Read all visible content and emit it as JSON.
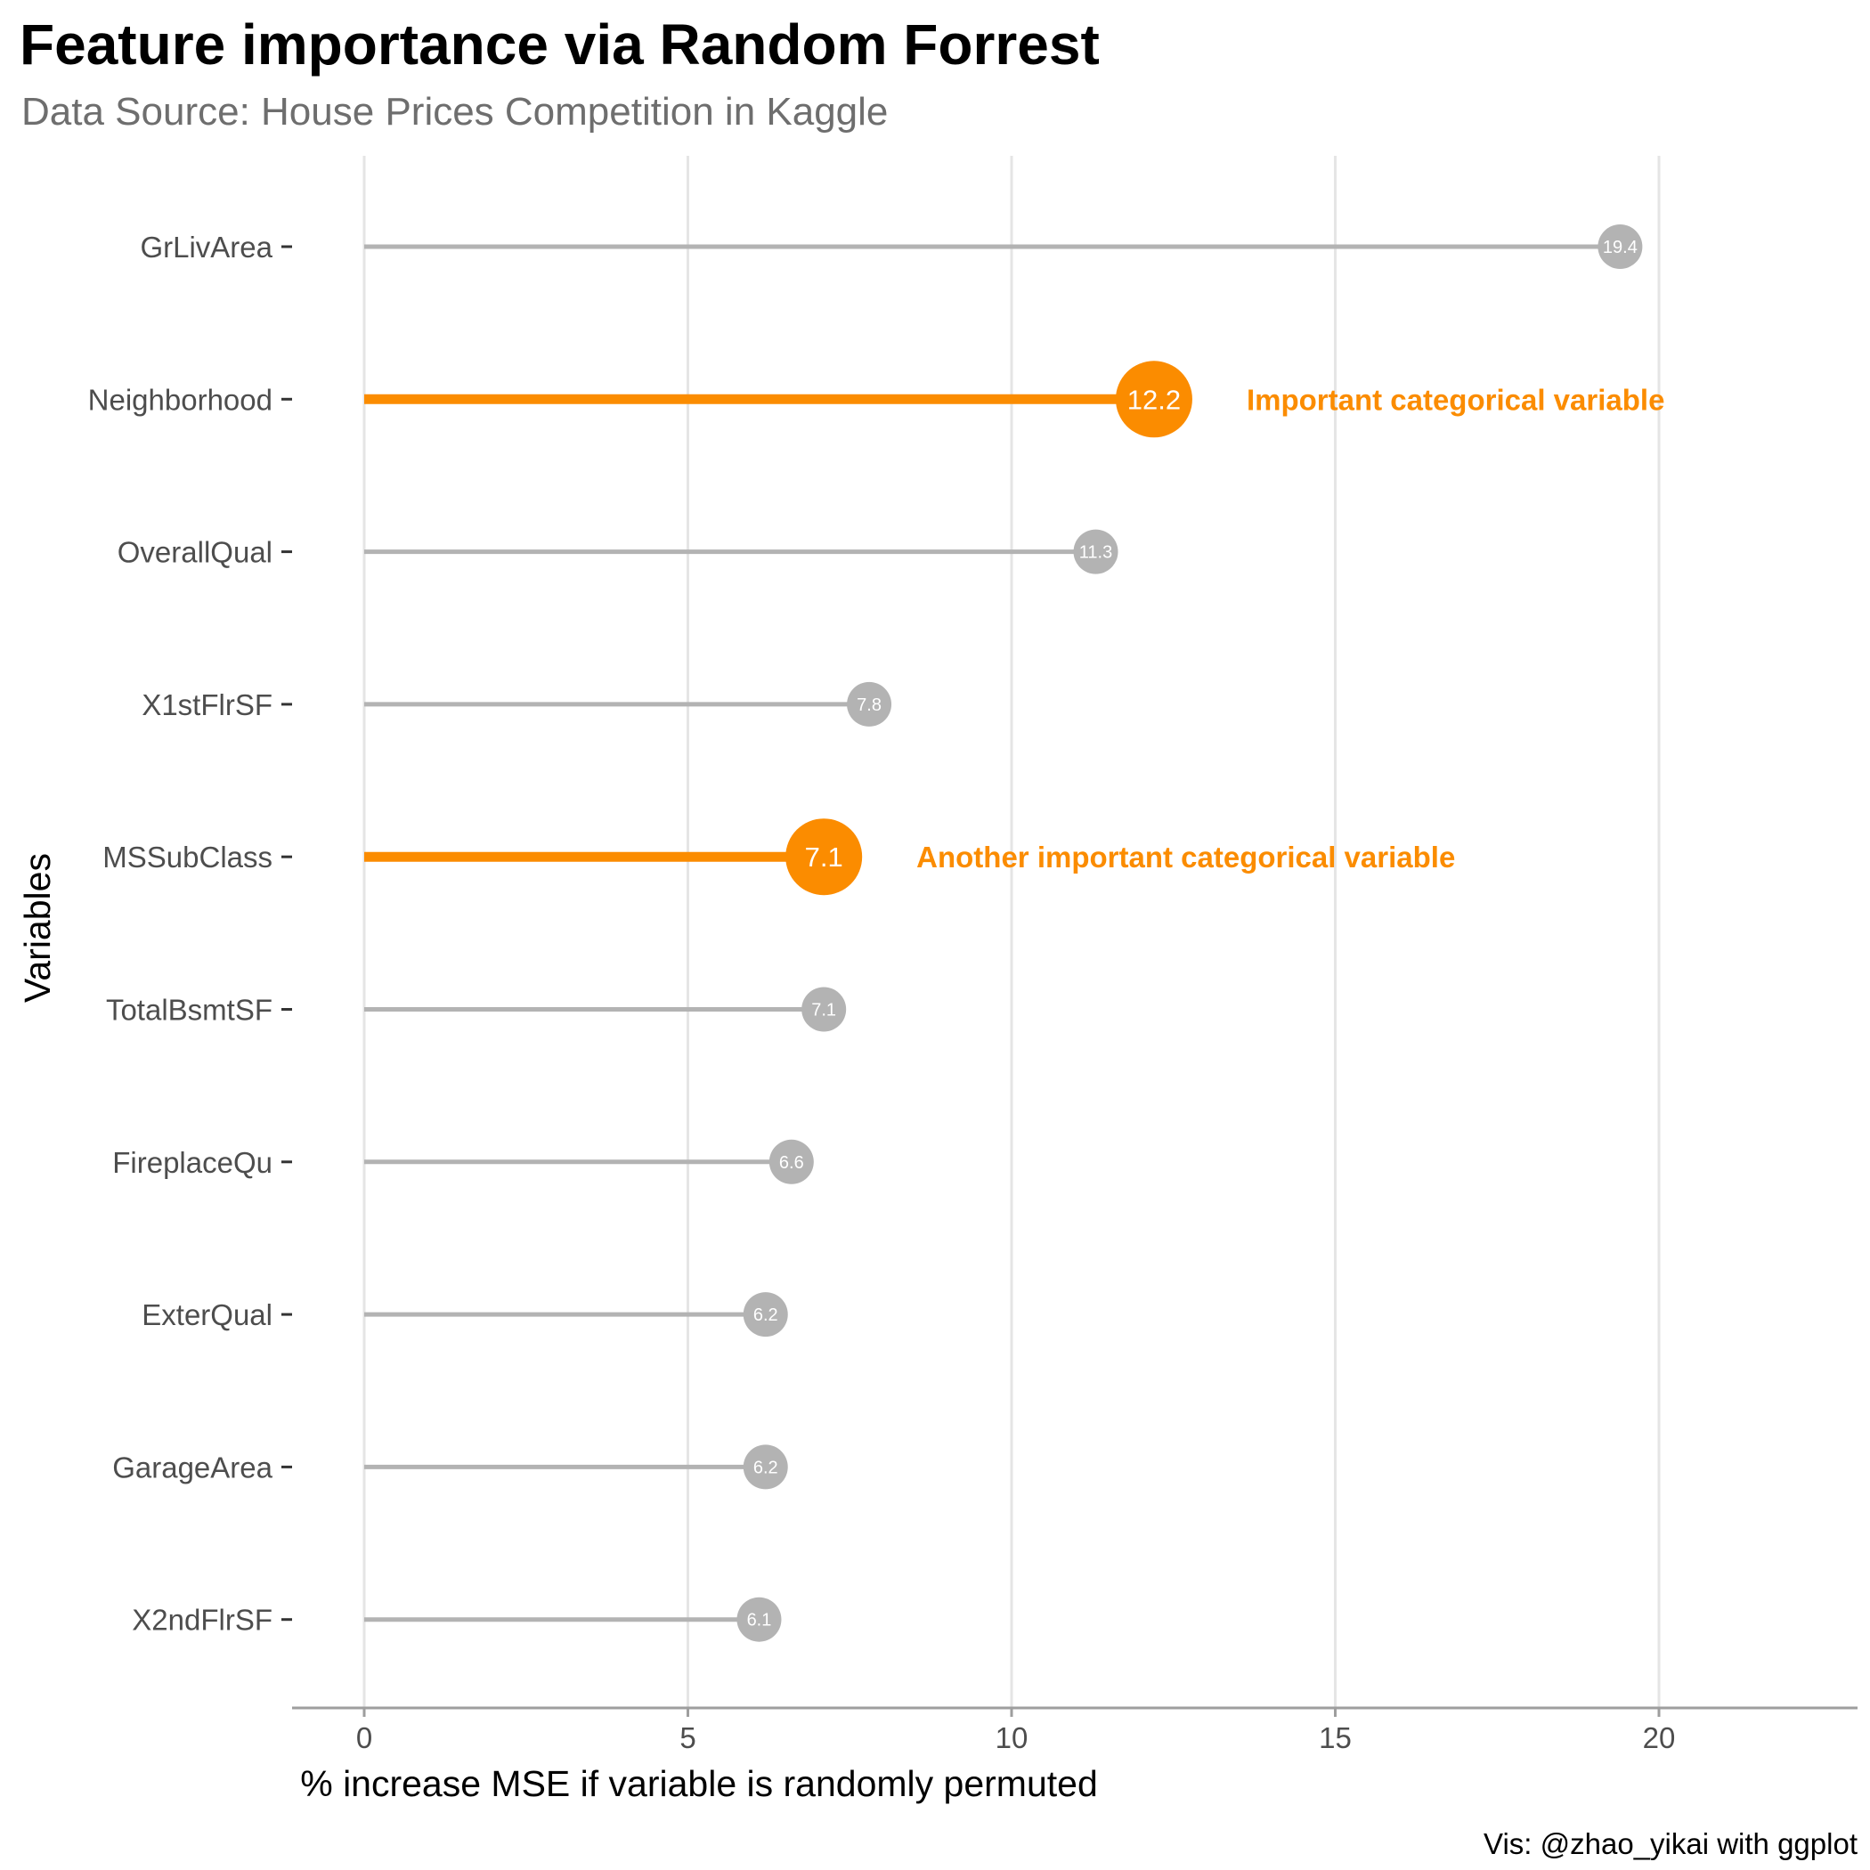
{
  "chart_data": {
    "type": "lollipop",
    "title": "Feature importance via Random Forrest",
    "subtitle": "Data Source: House Prices Competition in Kaggle",
    "xlabel": "% increase MSE if variable is randomly permuted",
    "ylabel": "Variables",
    "caption": "Vis: @zhao_yikai with ggplot",
    "xlim": [
      0,
      23
    ],
    "x_ticks": [
      0,
      5,
      10,
      15,
      20
    ],
    "x_tick_labels": [
      "0",
      "5",
      "10",
      "15",
      "20"
    ],
    "grid": "vertical major",
    "categories": [
      "GrLivArea",
      "Neighborhood",
      "OverallQual",
      "X1stFlrSF",
      "MSSubClass",
      "TotalBsmtSF",
      "FireplaceQu",
      "ExterQual",
      "GarageArea",
      "X2ndFlrSF"
    ],
    "values": [
      19.4,
      12.2,
      11.3,
      7.8,
      7.1,
      7.1,
      6.6,
      6.2,
      6.2,
      6.1
    ],
    "value_labels": [
      "19.4",
      "12.2",
      "11.3",
      "7.8",
      "7.1",
      "7.1",
      "6.6",
      "6.2",
      "6.2",
      "6.1"
    ],
    "highlighted": [
      false,
      true,
      false,
      false,
      true,
      false,
      false,
      false,
      false,
      false
    ],
    "annotations": [
      {
        "category": "Neighborhood",
        "text": "Important categorical variable"
      },
      {
        "category": "MSSubClass",
        "text": "Another important categorical variable"
      }
    ],
    "colors": {
      "default": "#b3b3b3",
      "highlight": "#fb8c00",
      "grid": "#e5e5e5",
      "axis": "#9e9e9e"
    }
  }
}
